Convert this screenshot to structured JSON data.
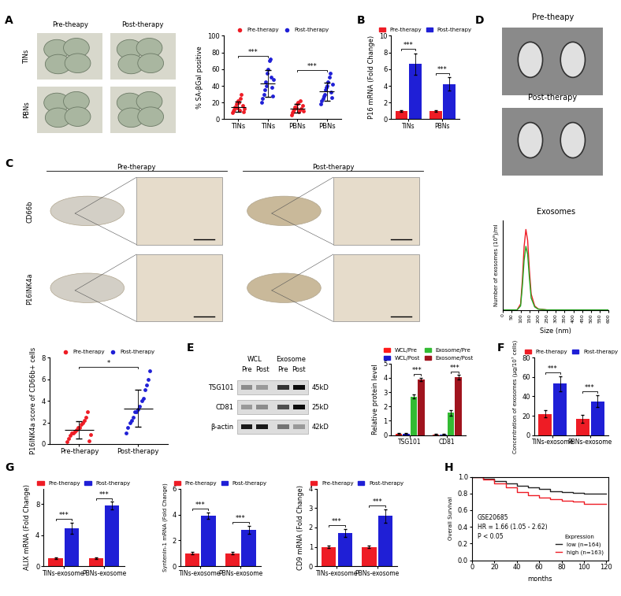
{
  "image_panels": [
    {
      "panel_label": "A",
      "columns": [
        "Pre-theapy",
        "Post-therapy"
      ],
      "rows": [
        "TINs",
        "PBNs"
      ]
    },
    {
      "panel_label": "C",
      "columns": [
        "Pre-therapy",
        "Post-therapy"
      ],
      "rows": [
        "CD66b",
        "P16INK4a"
      ]
    },
    {
      "panel_label": "D",
      "rows": [
        "Pre-theapy",
        "Post-therapy"
      ]
    },
    {
      "panel_label": "E",
      "groups": [
        "WCL",
        "Exosome"
      ],
      "lanes": [
        "Pre",
        "Post",
        "Pre",
        "Post"
      ],
      "bands": [
        {
          "name": "TSG101",
          "size": "45kD"
        },
        {
          "name": "CD81",
          "size": "25kD"
        },
        {
          "name": "β-actin",
          "size": "42kD"
        }
      ]
    }
  ],
  "chart_data": [
    {
      "type": "strip",
      "ylabel": "% SA-βGal positive",
      "categories": [
        "TINs",
        "TINs",
        "PBNs",
        "PBNs"
      ],
      "series": [
        {
          "name": "Pre-therapy",
          "color": "#ee1c25",
          "values": [
            [
              8,
              10,
              12,
              15,
              18,
              14,
              22,
              20,
              11,
              25,
              30,
              16,
              9,
              13
            ],
            null,
            [
              5,
              8,
              10,
              12,
              15,
              14,
              18,
              20,
              9,
              11,
              22,
              13,
              16,
              10
            ],
            null
          ],
          "means": [
            15,
            null,
            13,
            null
          ],
          "errors": [
            6,
            null,
            5,
            null
          ]
        },
        {
          "name": "Post-therapy",
          "color": "#1f1fd6",
          "values": [
            null,
            [
              20,
              25,
              30,
              35,
              45,
              40,
              55,
              60,
              70,
              72,
              50,
              38,
              28,
              48
            ],
            null,
            [
              18,
              22,
              25,
              28,
              30,
              35,
              38,
              40,
              45,
              50,
              55,
              32,
              26,
              42
            ]
          ],
          "means": [
            null,
            43,
            null,
            33
          ],
          "errors": [
            null,
            16,
            null,
            11
          ]
        }
      ],
      "ylim": [
        0,
        100
      ],
      "yticks": [
        0,
        20,
        40,
        60,
        80,
        100
      ],
      "legend": "lower center",
      "annotations": [
        {
          "text": "***",
          "between": [
            0,
            1
          ]
        },
        {
          "text": "***",
          "between": [
            2,
            3
          ]
        }
      ]
    },
    {
      "type": "bar",
      "panel_label": "B",
      "ylabel": "P16 mRNA (Fold Change)",
      "categories": [
        "TINs",
        "PBNs"
      ],
      "series": [
        {
          "name": "Pre-therapy",
          "color": "#ee1c25",
          "values": [
            1,
            1
          ],
          "errors": [
            0.1,
            0.1
          ]
        },
        {
          "name": "Post-therapy",
          "color": "#1f1fd6",
          "values": [
            6.6,
            4.2
          ],
          "errors": [
            1.3,
            0.8
          ]
        }
      ],
      "ylim": [
        0,
        10
      ],
      "yticks": [
        0,
        2,
        4,
        6,
        8,
        10
      ],
      "legend": "lower center",
      "annotations": [
        {
          "text": "***",
          "category": 0,
          "between": [
            0,
            1
          ]
        },
        {
          "text": "***",
          "category": 1,
          "between": [
            0,
            1
          ]
        }
      ]
    },
    {
      "type": "strip",
      "ylabel": "P16INK4a score of CD66b+ cells",
      "categories": [
        "Pre-therapy",
        "Post-therapy"
      ],
      "series": [
        {
          "name": "Pre-therapy",
          "color": "#ee1c25",
          "values": [
            [
              0.2,
              0.5,
              0.8,
              1.0,
              1.0,
              1.2,
              1.3,
              1.5,
              1.5,
              1.8,
              2.0,
              2.2,
              2.5,
              3.0,
              0.3,
              0.9
            ],
            null
          ],
          "means": [
            1.3,
            null
          ],
          "errors": [
            0.8,
            null
          ]
        },
        {
          "name": "Post-therapy",
          "color": "#1f1fd6",
          "values": [
            null,
            [
              1.0,
              1.5,
              2.0,
              2.2,
              2.5,
              3.0,
              3.0,
              3.2,
              3.5,
              4.0,
              4.2,
              5.0,
              5.5,
              6.0,
              6.8
            ]
          ],
          "means": [
            null,
            3.3
          ],
          "errors": [
            null,
            1.7
          ]
        }
      ],
      "ylim": [
        0,
        8
      ],
      "yticks": [
        0,
        2,
        4,
        6,
        8
      ],
      "legend": "lower center",
      "annotations": [
        {
          "text": "*",
          "between": [
            0,
            1
          ]
        }
      ]
    },
    {
      "type": "line",
      "title": "Exosomes",
      "xlabel": "Size (nm)",
      "ylabel": "Number of exosomes (10⁸)/ml",
      "x": [
        0,
        50,
        80,
        100,
        110,
        120,
        130,
        140,
        150,
        160,
        180,
        200,
        250,
        300,
        400,
        500,
        600
      ],
      "series": [
        {
          "color": "#ee1c25",
          "values": [
            0,
            0,
            0,
            0.3,
            1.5,
            3.2,
            4.05,
            3.5,
            2.0,
            0.8,
            0.2,
            0.05,
            0,
            0,
            0,
            0,
            0
          ]
        },
        {
          "color": "#22aa22",
          "values": [
            0,
            0,
            0,
            0.2,
            1.2,
            2.5,
            3.2,
            2.8,
            1.6,
            0.6,
            0.15,
            0.04,
            0,
            0,
            0,
            0,
            0
          ]
        }
      ],
      "xlim": [
        0,
        600
      ],
      "xticks": [
        0,
        50,
        100,
        150,
        200,
        250,
        300,
        350,
        400,
        450,
        500,
        550,
        600
      ],
      "ylim": [
        0,
        4.5
      ],
      "tick_labels": "x"
    },
    {
      "type": "bar",
      "ylabel": "Relative protein level",
      "categories": [
        "TSG101",
        "CD81"
      ],
      "series": [
        {
          "name": "WCL/Pre",
          "color": "#ff1a1a",
          "values": [
            0.1,
            0.05
          ],
          "errors": [
            0.03,
            0.02
          ]
        },
        {
          "name": "WCL/Post",
          "color": "#1a1acc",
          "values": [
            0.1,
            0.05
          ],
          "errors": [
            0.03,
            0.02
          ]
        },
        {
          "name": "Exosome/Pre",
          "color": "#33bb33",
          "values": [
            2.7,
            1.55
          ],
          "errors": [
            0.15,
            0.18
          ]
        },
        {
          "name": "Exosome/Post",
          "color": "#a0141e",
          "values": [
            3.9,
            4.05
          ],
          "errors": [
            0.12,
            0.15
          ]
        }
      ],
      "ylim": [
        0,
        5
      ],
      "yticks": [
        0,
        1,
        2,
        3,
        4,
        5
      ],
      "legend": "lower center",
      "annotations": [
        {
          "text": "***",
          "category": 0,
          "between": [
            2,
            3
          ]
        },
        {
          "text": "***",
          "category": 1,
          "between": [
            2,
            3
          ]
        }
      ]
    },
    {
      "type": "bar",
      "panel_label": "F",
      "ylabel": "Concentration of exosomes (μg/10⁷ cells)",
      "categories": [
        "TINs-exosome",
        "PBNs-exosome"
      ],
      "series": [
        {
          "name": "Pre-therapy",
          "color": "#ee1c25",
          "values": [
            22,
            17
          ],
          "errors": [
            4,
            4
          ]
        },
        {
          "name": "Post-therapy",
          "color": "#1f1fd6",
          "values": [
            53,
            35
          ],
          "errors": [
            8,
            6
          ]
        }
      ],
      "ylim": [
        0,
        80
      ],
      "yticks": [
        0,
        20,
        40,
        60,
        80
      ],
      "legend": "lower center",
      "annotations": [
        {
          "text": "***",
          "category": 0,
          "between": [
            0,
            1
          ]
        },
        {
          "text": "***",
          "category": 1,
          "between": [
            0,
            1
          ]
        }
      ]
    },
    {
      "type": "bar",
      "panel_label": "G",
      "ylabel": "ALIX mRNA (Fold Change)",
      "categories": [
        "TINs-exosome",
        "PBNs-exosome"
      ],
      "series": [
        {
          "name": "Pre-therapy",
          "color": "#ee1c25",
          "values": [
            1,
            1
          ],
          "errors": [
            0.1,
            0.1
          ]
        },
        {
          "name": "Post-therapy",
          "color": "#1f1fd6",
          "values": [
            4.9,
            7.8
          ],
          "errors": [
            0.7,
            0.5
          ]
        }
      ],
      "ylim": [
        0,
        10
      ],
      "yticks": [
        0,
        4,
        8
      ],
      "legend": "lower center",
      "annotations": [
        {
          "text": "***",
          "category": 0,
          "between": [
            0,
            1
          ]
        },
        {
          "text": "***",
          "category": 1,
          "between": [
            0,
            1
          ]
        }
      ]
    },
    {
      "type": "bar",
      "ylabel": "Syntenin-1 mRNA (Fold Change)",
      "categories": [
        "TINs-exosome",
        "PBNs-exosome"
      ],
      "series": [
        {
          "name": "Pre-therapy",
          "color": "#ee1c25",
          "values": [
            1,
            1
          ],
          "errors": [
            0.1,
            0.08
          ]
        },
        {
          "name": "Post-therapy",
          "color": "#1f1fd6",
          "values": [
            3.9,
            2.8
          ],
          "errors": [
            0.25,
            0.3
          ]
        }
      ],
      "ylim": [
        0,
        6
      ],
      "yticks": [
        0,
        2,
        4,
        6
      ],
      "legend": "lower center",
      "annotations": [
        {
          "text": "***",
          "category": 0,
          "between": [
            0,
            1
          ]
        },
        {
          "text": "***",
          "category": 1,
          "between": [
            0,
            1
          ]
        }
      ]
    },
    {
      "type": "bar",
      "ylabel": "CD9 mRNA (Fold Change)",
      "categories": [
        "TINs-exosome",
        "PBNs-exosome"
      ],
      "series": [
        {
          "name": "Pre-therapy",
          "color": "#ee1c25",
          "values": [
            1,
            1
          ],
          "errors": [
            0.07,
            0.07
          ]
        },
        {
          "name": "Post-therapy",
          "color": "#1f1fd6",
          "values": [
            1.7,
            2.6
          ],
          "errors": [
            0.2,
            0.35
          ]
        }
      ],
      "ylim": [
        0,
        4
      ],
      "yticks": [
        0,
        1,
        2,
        3,
        4
      ],
      "legend": "lower center",
      "annotations": [
        {
          "text": "***",
          "category": 0,
          "between": [
            0,
            1
          ]
        },
        {
          "text": "***",
          "category": 1,
          "between": [
            0,
            1
          ]
        }
      ]
    },
    {
      "type": "line",
      "panel_label": "H",
      "xlabel": "months",
      "ylabel": "Overall Survival",
      "line_style": "steps",
      "x": [
        0,
        10,
        20,
        30,
        40,
        50,
        60,
        70,
        80,
        90,
        100,
        110,
        120
      ],
      "series": [
        {
          "name": "low (n=164)",
          "color": "#222222",
          "values": [
            1.0,
            0.98,
            0.95,
            0.92,
            0.89,
            0.87,
            0.85,
            0.83,
            0.82,
            0.81,
            0.8,
            0.8,
            0.8
          ]
        },
        {
          "name": "high (n=163)",
          "color": "#ee1c25",
          "values": [
            1.0,
            0.97,
            0.92,
            0.87,
            0.82,
            0.78,
            0.75,
            0.73,
            0.71,
            0.7,
            0.68,
            0.68,
            0.68
          ]
        }
      ],
      "legend_title": "Expression",
      "legend": "lower right",
      "annotations": [
        "GSE20685",
        "HR = 1.66 (1.05 - 2.62)",
        "P < 0.05"
      ],
      "xlim": [
        0,
        122
      ],
      "xticks": [
        0,
        20,
        40,
        60,
        80,
        100,
        120
      ],
      "ylim": [
        0,
        1
      ],
      "yticks": [
        {
          "value": 0,
          "label": "0.0"
        },
        0.2,
        0.4,
        0.6,
        0.8,
        {
          "value": 1,
          "label": "1.0"
        }
      ]
    }
  ]
}
